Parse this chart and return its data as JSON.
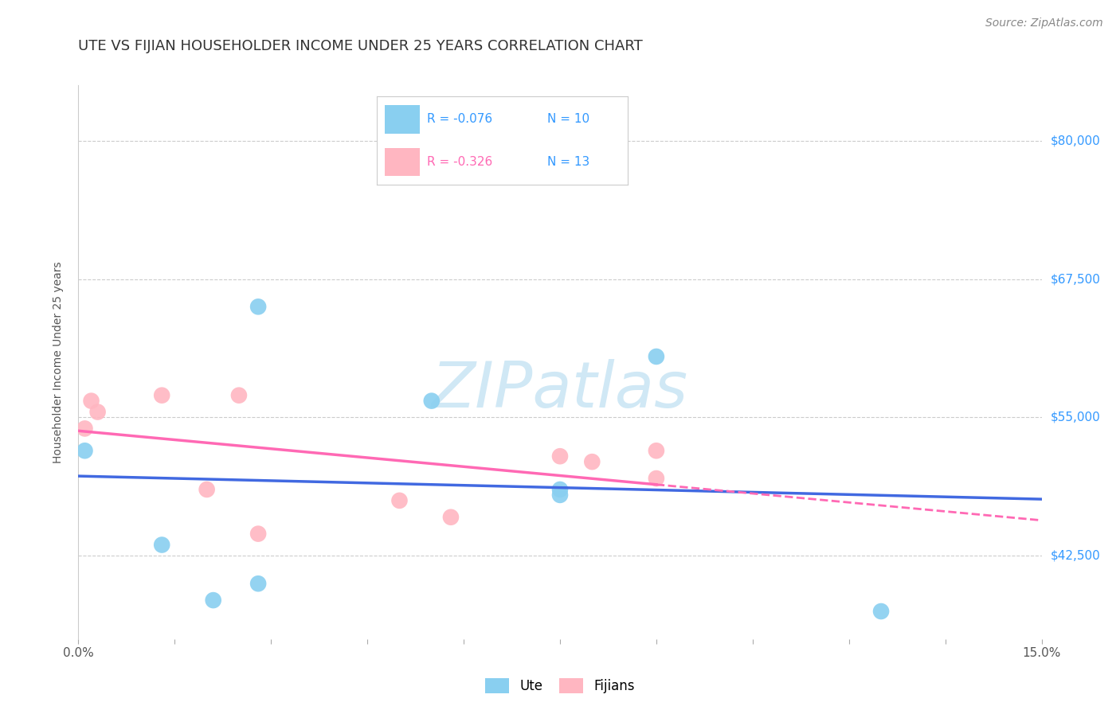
{
  "title": "UTE VS FIJIAN HOUSEHOLDER INCOME UNDER 25 YEARS CORRELATION CHART",
  "source": "Source: ZipAtlas.com",
  "ylabel": "Householder Income Under 25 years",
  "xlim": [
    0.0,
    0.15
  ],
  "ylim": [
    35000,
    85000
  ],
  "yticks": [
    42500,
    55000,
    67500,
    80000
  ],
  "ytick_labels": [
    "$42,500",
    "$55,000",
    "$67,500",
    "$80,000"
  ],
  "xticks": [
    0.0,
    0.015,
    0.03,
    0.045,
    0.06,
    0.075,
    0.09,
    0.105,
    0.12,
    0.135,
    0.15
  ],
  "xtick_labels": [
    "0.0%",
    "",
    "",
    "",
    "",
    "",
    "",
    "",
    "",
    "",
    "15.0%"
  ],
  "ute_x": [
    0.001,
    0.013,
    0.021,
    0.028,
    0.028,
    0.055,
    0.075,
    0.075,
    0.09,
    0.125
  ],
  "ute_y": [
    52000,
    43500,
    38500,
    65000,
    40000,
    56500,
    48500,
    48000,
    60500,
    37500
  ],
  "fijian_x": [
    0.001,
    0.002,
    0.003,
    0.013,
    0.02,
    0.025,
    0.028,
    0.05,
    0.058,
    0.075,
    0.08,
    0.09,
    0.09
  ],
  "fijian_y": [
    54000,
    56500,
    55500,
    57000,
    48500,
    57000,
    44500,
    47500,
    46000,
    51500,
    51000,
    52000,
    49500
  ],
  "ute_color": "#89CFF0",
  "fijian_color": "#FFB6C1",
  "ute_line_color": "#4169E1",
  "fijian_line_color": "#FF69B4",
  "marker_size": 220,
  "background_color": "#ffffff",
  "grid_color": "#cccccc",
  "title_fontsize": 13,
  "axis_label_fontsize": 10,
  "tick_fontsize": 11,
  "source_fontsize": 10,
  "legend_r_ute": "R = -0.076",
  "legend_n_ute": "N = 10",
  "legend_r_fij": "R = -0.326",
  "legend_n_fij": "N = 13",
  "watermark": "ZIPatlas",
  "watermark_color": "#d0e8f5"
}
